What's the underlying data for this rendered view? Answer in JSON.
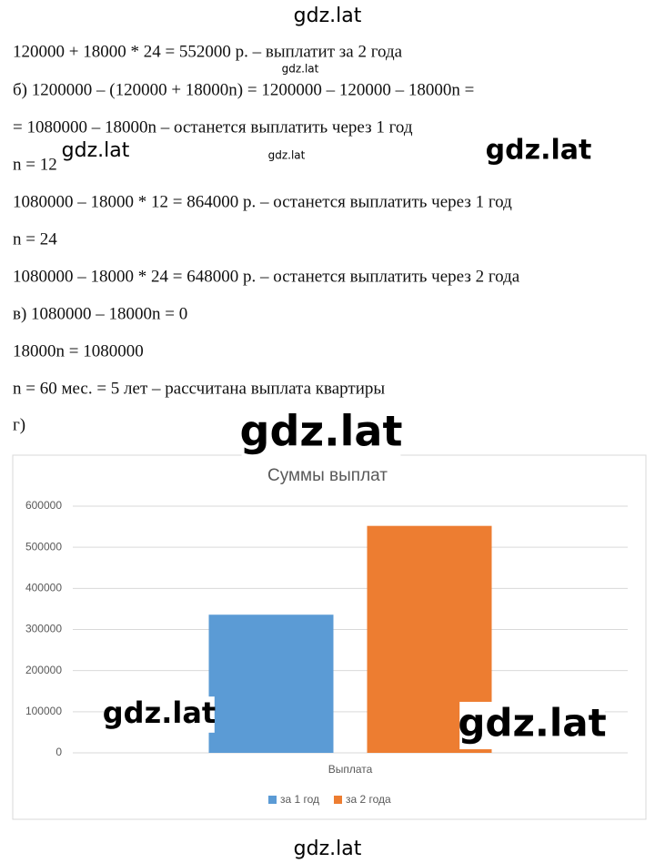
{
  "lines": [
    "120000 + 18000 * 24 = 552000 р. – выплатит за 2 года",
    "б) 1200000 – (120000 + 18000n) = 1200000 – 120000 – 18000n =",
    "= 1080000 – 18000n – останется выплатить через 1 год",
    "n = 12",
    "1080000 – 18000 * 12 = 864000 р. – останется выплатить через 1 год",
    "n = 24",
    "1080000 – 18000 * 24 = 648000 р. – останется выплатить через 2 года",
    "в) 1080000 – 18000n = 0",
    "18000n = 1080000",
    "n = 60 мес. = 5 лет – рассчитана выплата квартиры",
    "г)"
  ],
  "watermarks": [
    "gdz.lat",
    "gdz.lat",
    "gdz.lat",
    "gdz.lat",
    "gdz.lat",
    "gdz.lat",
    "gdz.lat",
    "gdz.lat",
    "gdz.lat"
  ],
  "chart_data": {
    "type": "bar",
    "title": "Суммы выплат",
    "categories": [
      "Выплата"
    ],
    "series": [
      {
        "name": "за 1 год",
        "color": "#5b9bd5",
        "values": [
          336000
        ]
      },
      {
        "name": "за 2 года",
        "color": "#ed7d31",
        "values": [
          552000
        ]
      }
    ],
    "ylim": [
      0,
      600000
    ],
    "yticks": [
      0,
      100000,
      200000,
      300000,
      400000,
      500000,
      600000
    ],
    "grid": true,
    "legend": "bottom"
  }
}
